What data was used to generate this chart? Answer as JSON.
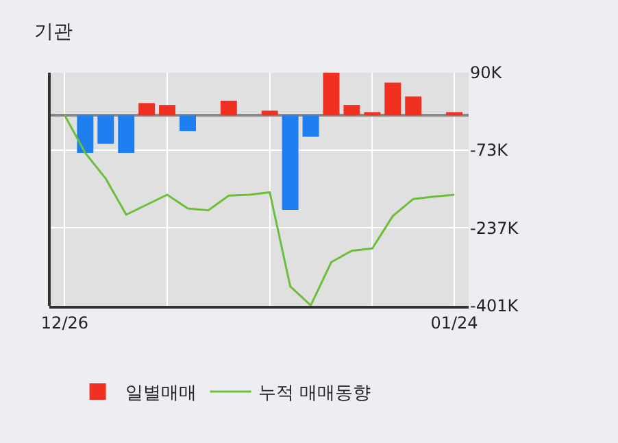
{
  "chart_data": {
    "type": "bar",
    "title": "기관",
    "categories": [
      "12/26",
      null,
      null,
      null,
      null,
      null,
      null,
      null,
      null,
      null,
      null,
      null,
      null,
      null,
      null,
      null,
      null,
      null,
      null,
      "01/24"
    ],
    "series": [
      {
        "name": "일별매매",
        "colors": [
          "#f03020",
          "#1e7ff0",
          "#1e7ff0",
          "#1e7ff0",
          "#f03020",
          "#f03020",
          "#1e7ff0",
          "#f03020",
          "#f03020",
          "#f03020",
          "#f03020",
          "#1e7ff0",
          "#1e7ff0",
          "#f03020",
          "#f03020",
          "#f03020",
          "#f03020",
          "#f03020",
          "#f03020",
          "#f03020"
        ],
        "values": [
          0,
          -79,
          -60,
          -79,
          26,
          22,
          -33,
          0,
          31,
          0,
          10,
          -199,
          -45,
          90,
          22,
          7,
          69,
          40,
          0,
          7
        ]
      },
      {
        "name": "누적 매매동향",
        "type": "line",
        "color": "#6cbf3a",
        "values": [
          0,
          -79,
          -133,
          -209,
          -188,
          -167,
          -196,
          -200,
          -169,
          -167,
          -162,
          -360,
          -400,
          -309,
          -285,
          -280,
          -212,
          -176,
          -171,
          -167
        ]
      }
    ],
    "ylim": [
      -401,
      90
    ],
    "yticks": [
      {
        "value": 90,
        "label": "90K"
      },
      {
        "value": -73,
        "label": "-73K"
      },
      {
        "value": -237,
        "label": "-237K"
      },
      {
        "value": -401,
        "label": "-401K"
      }
    ],
    "grid": true,
    "legend": "bottom",
    "marker": "none",
    "line_style": "solid"
  }
}
